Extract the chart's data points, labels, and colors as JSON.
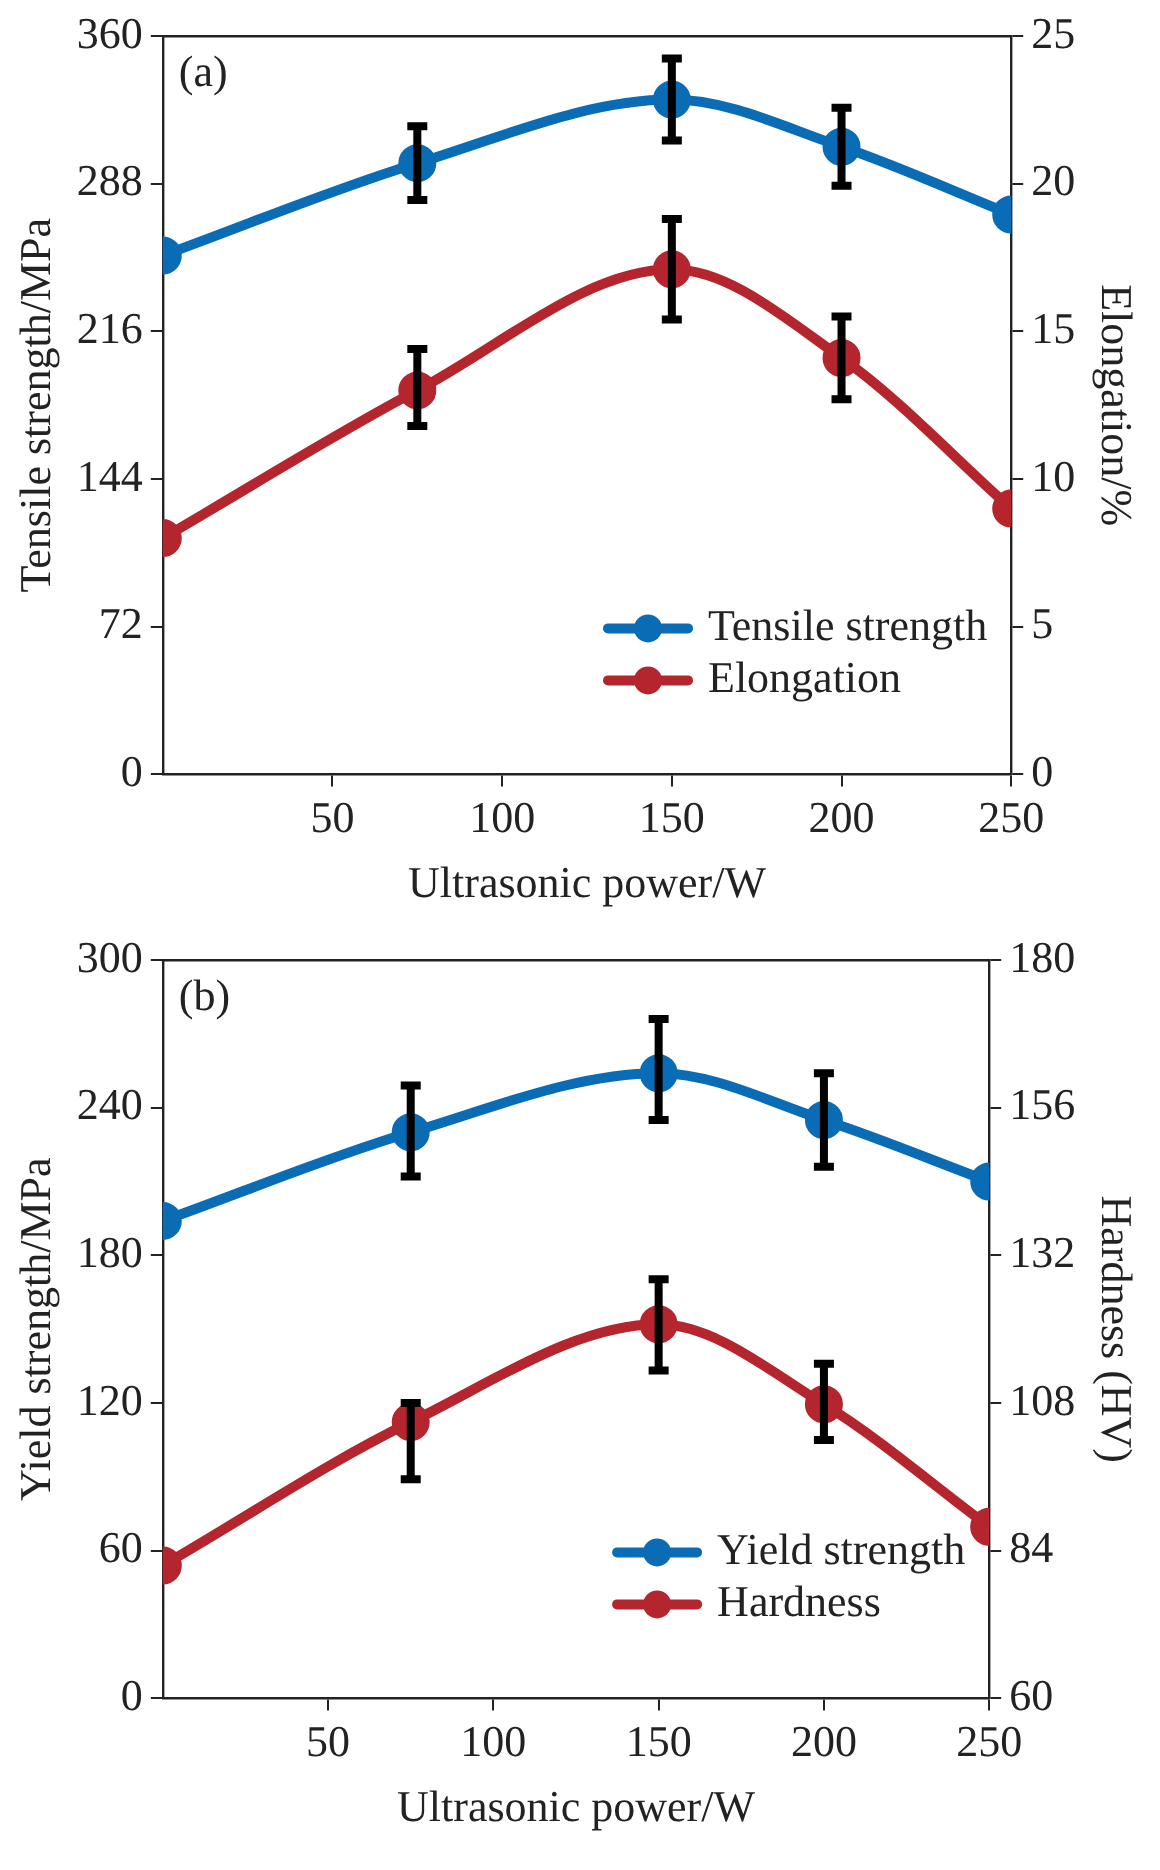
{
  "chart_data": [
    {
      "type": "line",
      "xlabel": "Ultrasonic power/W",
      "ylabel": "Tensile strength/MPa",
      "y2label": "Elongation/%",
      "annotations": [
        "(a)"
      ],
      "x": [
        0,
        75,
        150,
        200,
        250
      ],
      "xlim": [
        0,
        250
      ],
      "xticks": [
        50,
        100,
        150,
        200,
        250
      ],
      "ylim": [
        0,
        360
      ],
      "yticks": [
        0,
        72,
        144,
        216,
        288,
        360
      ],
      "y2lim": [
        0,
        25
      ],
      "y2ticks": [
        0,
        5,
        10,
        15,
        20,
        25
      ],
      "series": [
        {
          "name": "Tensile strength",
          "color": "#0b6cb6",
          "values": [
            253,
            298,
            329,
            306,
            273
          ],
          "errors": [
            null,
            [
              280,
              316
            ],
            [
              309,
              349
            ],
            [
              287,
              325
            ],
            null
          ]
        },
        {
          "name": "Elongation",
          "color": "#b5252d",
          "axis": "y2",
          "values": [
            8.0,
            13.0,
            17.1,
            14.1,
            9.0
          ],
          "errors": [
            null,
            [
              11.8,
              14.4
            ],
            [
              15.4,
              18.8
            ],
            [
              12.7,
              15.5
            ],
            null
          ]
        }
      ],
      "legend": "bottom right",
      "marker": "circle",
      "grid": false
    },
    {
      "type": "line",
      "xlabel": "Ultrasonic power/W",
      "ylabel": "Yield strength/MPa",
      "y2label": "Hardness (HV)",
      "annotations": [
        "(b)"
      ],
      "x": [
        0,
        75,
        150,
        200,
        250
      ],
      "xlim": [
        0,
        250
      ],
      "xticks": [
        50,
        100,
        150,
        200,
        250
      ],
      "ylim": [
        0,
        300
      ],
      "yticks": [
        0,
        60,
        120,
        180,
        240,
        300
      ],
      "y2lim": [
        60,
        180
      ],
      "y2ticks": [
        60,
        84,
        108,
        132,
        156,
        180
      ],
      "series": [
        {
          "name": "Yield strength",
          "color": "#0b6cb6",
          "values": [
            194,
            230,
            254,
            235,
            210
          ],
          "errors": [
            null,
            [
              212,
              249
            ],
            [
              235,
              276
            ],
            [
              216,
              254
            ],
            null
          ]
        },
        {
          "name": "Hardness",
          "color": "#b5252d",
          "axis": "y2",
          "values": [
            81.6,
            104.9,
            120.8,
            107.8,
            87.9
          ],
          "errors": [
            null,
            [
              95.6,
              108
            ],
            [
              113.3,
              128.1
            ],
            [
              102,
              114.4
            ],
            null
          ]
        }
      ],
      "legend": "bottom right",
      "marker": "circle",
      "grid": false
    }
  ]
}
